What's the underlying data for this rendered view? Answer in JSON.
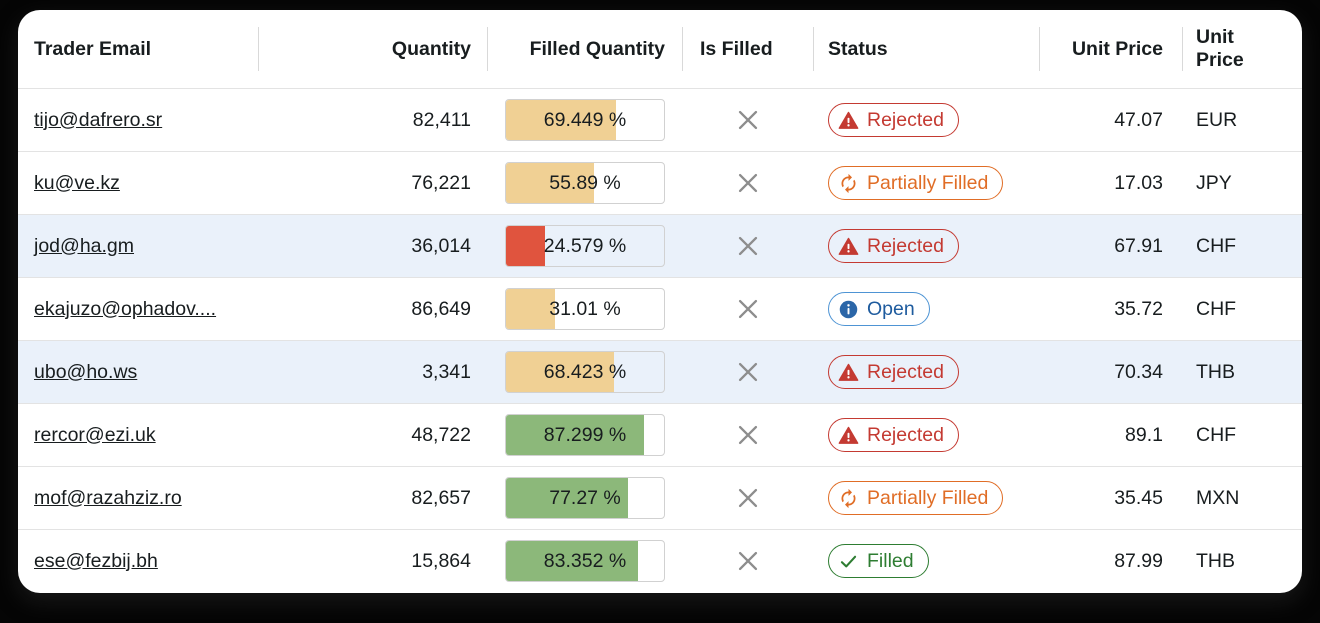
{
  "colors": {
    "page_background": "#050505",
    "card_background": "#ffffff",
    "text": "#181d1f",
    "row_border": "#e3e3e3",
    "header_divider": "#d9d9d9",
    "bar_border": "#d1d1d1",
    "bar_low": "#e0543e",
    "bar_mid": "#f0d094",
    "bar_high": "#8cb87a",
    "row_selected": "#eaf1fa",
    "cross_icon": "#8d8d8d"
  },
  "statuses": {
    "rejected": {
      "label": "Rejected",
      "text_color": "#c43a32",
      "border_color": "#c43a32",
      "icon_color": "#c43a32",
      "icon": "warning-icon"
    },
    "partially": {
      "label": "Partially Filled",
      "text_color": "#e06d26",
      "border_color": "#e06d26",
      "icon_color": "#e06d26",
      "icon": "refresh-icon"
    },
    "open": {
      "label": "Open",
      "text_color": "#1e5b9e",
      "border_color": "#4e94d4",
      "icon_color": "#2b66a8",
      "icon": "info-icon"
    },
    "filled": {
      "label": "Filled",
      "text_color": "#2e7d32",
      "border_color": "#2e7d32",
      "icon_color": "#2e7d32",
      "icon": "check-icon"
    }
  },
  "table": {
    "columns": [
      {
        "label": "Trader Email",
        "align": "left"
      },
      {
        "label": "Quantity",
        "align": "right"
      },
      {
        "label": "Filled Quantity",
        "align": "right"
      },
      {
        "label": "Is Filled",
        "align": "left"
      },
      {
        "label": "Status",
        "align": "left"
      },
      {
        "label": "Unit Price",
        "align": "right"
      },
      {
        "label": "Unit Price",
        "align": "left"
      }
    ],
    "rows": [
      {
        "email": "tijo@dafrero.sr",
        "quantity": "82,411",
        "filled_pct": 69.449,
        "filled_display": "69.449 %",
        "level": "mid",
        "is_filled": false,
        "status": "rejected",
        "unit_price": "47.07",
        "currency": "EUR",
        "selected": false
      },
      {
        "email": "ku@ve.kz",
        "quantity": "76,221",
        "filled_pct": 55.89,
        "filled_display": "55.89 %",
        "level": "mid",
        "is_filled": false,
        "status": "partially",
        "unit_price": "17.03",
        "currency": "JPY",
        "selected": false
      },
      {
        "email": "jod@ha.gm",
        "quantity": "36,014",
        "filled_pct": 24.579,
        "filled_display": "24.579 %",
        "level": "low",
        "is_filled": false,
        "status": "rejected",
        "unit_price": "67.91",
        "currency": "CHF",
        "selected": true
      },
      {
        "email": "ekajuzo@ophadov....",
        "quantity": "86,649",
        "filled_pct": 31.01,
        "filled_display": "31.01 %",
        "level": "mid",
        "is_filled": false,
        "status": "open",
        "unit_price": "35.72",
        "currency": "CHF",
        "selected": false
      },
      {
        "email": "ubo@ho.ws",
        "quantity": "3,341",
        "filled_pct": 68.423,
        "filled_display": "68.423 %",
        "level": "mid",
        "is_filled": false,
        "status": "rejected",
        "unit_price": "70.34",
        "currency": "THB",
        "selected": true
      },
      {
        "email": "rercor@ezi.uk",
        "quantity": "48,722",
        "filled_pct": 87.299,
        "filled_display": "87.299 %",
        "level": "high",
        "is_filled": false,
        "status": "rejected",
        "unit_price": "89.1",
        "currency": "CHF",
        "selected": false
      },
      {
        "email": "mof@razahziz.ro",
        "quantity": "82,657",
        "filled_pct": 77.27,
        "filled_display": "77.27 %",
        "level": "high",
        "is_filled": false,
        "status": "partially",
        "unit_price": "35.45",
        "currency": "MXN",
        "selected": false
      },
      {
        "email": "ese@fezbij.bh",
        "quantity": "15,864",
        "filled_pct": 83.352,
        "filled_display": "83.352 %",
        "level": "high",
        "is_filled": false,
        "status": "filled",
        "unit_price": "87.99",
        "currency": "THB",
        "selected": false
      }
    ]
  }
}
